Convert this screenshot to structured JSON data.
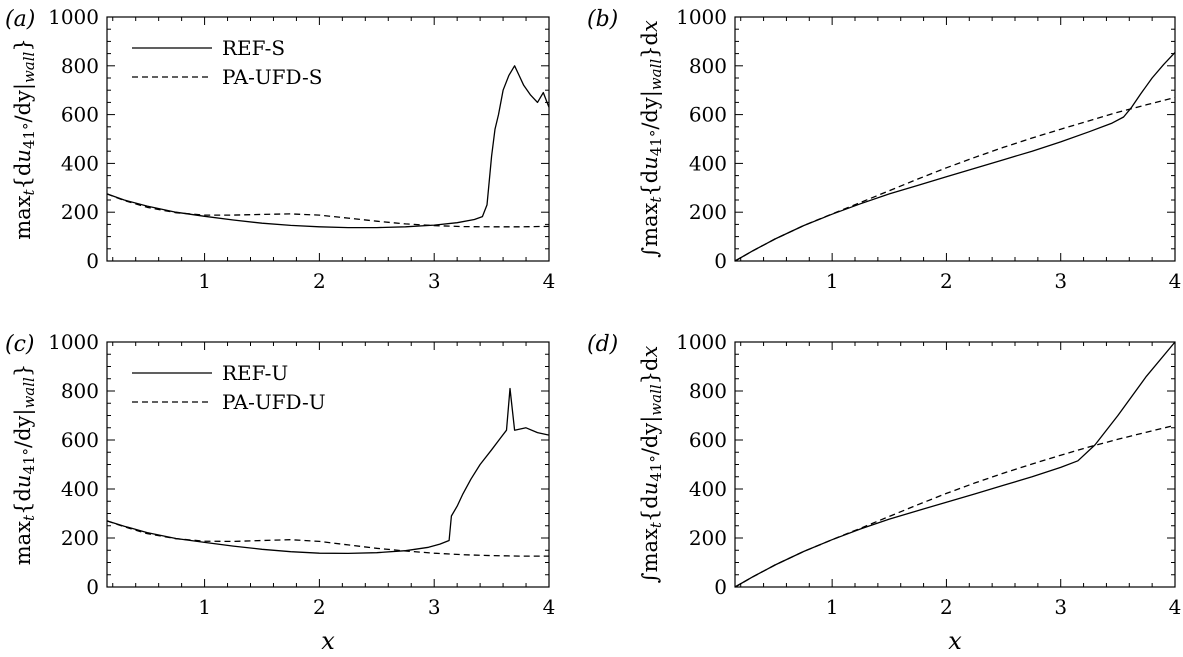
{
  "chart_data": [
    {
      "panel": "(a)",
      "type": "line",
      "ylabel": "max_t{du_41°/dy|_wall}",
      "xlabel": "",
      "xlim": [
        0.15,
        4.0
      ],
      "ylim": [
        0,
        1000
      ],
      "xticks": [
        "1",
        "2",
        "3",
        "4"
      ],
      "yticks": [
        "0",
        "200",
        "400",
        "600",
        "800",
        "1000"
      ],
      "legend": "top-left",
      "series": [
        {
          "name": "REF-S",
          "style": "solid",
          "x": [
            0.15,
            0.3,
            0.5,
            0.75,
            1.0,
            1.25,
            1.5,
            1.75,
            2.0,
            2.25,
            2.5,
            2.75,
            3.0,
            3.2,
            3.35,
            3.42,
            3.46,
            3.5,
            3.53,
            3.56,
            3.6,
            3.65,
            3.7,
            3.74,
            3.78,
            3.84,
            3.9,
            3.95,
            4.0
          ],
          "y": [
            275,
            250,
            225,
            200,
            183,
            168,
            155,
            146,
            140,
            137,
            137,
            140,
            147,
            157,
            170,
            182,
            230,
            430,
            540,
            600,
            700,
            760,
            800,
            760,
            720,
            680,
            650,
            690,
            630
          ]
        },
        {
          "name": "PA-UFD-S",
          "style": "dashed",
          "x": [
            0.15,
            0.3,
            0.5,
            0.75,
            1.0,
            1.25,
            1.5,
            1.75,
            2.0,
            2.25,
            2.5,
            2.75,
            3.0,
            3.25,
            3.5,
            3.75,
            4.0
          ],
          "y": [
            275,
            248,
            220,
            198,
            188,
            188,
            191,
            193,
            188,
            176,
            163,
            152,
            145,
            141,
            140,
            140,
            142
          ]
        }
      ]
    },
    {
      "panel": "(b)",
      "type": "line",
      "ylabel": "∫max_t{du_41°/dy|_wall}dx",
      "xlabel": "",
      "xlim": [
        0.15,
        4.0
      ],
      "ylim": [
        0,
        1000
      ],
      "xticks": [
        "1",
        "2",
        "3",
        "4"
      ],
      "yticks": [
        "0",
        "200",
        "400",
        "600",
        "800",
        "1000"
      ],
      "series": [
        {
          "name": "REF-S",
          "style": "solid",
          "x": [
            0.15,
            0.3,
            0.5,
            0.75,
            1.0,
            1.25,
            1.5,
            1.75,
            2.0,
            2.25,
            2.5,
            2.75,
            3.0,
            3.25,
            3.45,
            3.55,
            3.62,
            3.7,
            3.8,
            3.9,
            4.0
          ],
          "y": [
            0,
            40,
            90,
            145,
            192,
            235,
            275,
            310,
            345,
            380,
            415,
            450,
            488,
            530,
            565,
            590,
            630,
            685,
            750,
            805,
            855
          ]
        },
        {
          "name": "PA-UFD-S",
          "style": "dashed",
          "x": [
            0.15,
            0.3,
            0.5,
            0.75,
            1.0,
            1.25,
            1.5,
            1.75,
            2.0,
            2.25,
            2.5,
            2.75,
            3.0,
            3.25,
            3.5,
            3.75,
            4.0
          ],
          "y": [
            0,
            40,
            90,
            145,
            193,
            240,
            288,
            336,
            382,
            425,
            466,
            504,
            540,
            575,
            610,
            640,
            670
          ]
        }
      ]
    },
    {
      "panel": "(c)",
      "type": "line",
      "ylabel": "max_t{du_41°/dy|_wall}",
      "xlabel": "x",
      "xlim": [
        0.15,
        4.0
      ],
      "ylim": [
        0,
        1000
      ],
      "xticks": [
        "1",
        "2",
        "3",
        "4"
      ],
      "yticks": [
        "0",
        "200",
        "400",
        "600",
        "800",
        "1000"
      ],
      "legend": "top-left",
      "series": [
        {
          "name": "REF-U",
          "style": "solid",
          "x": [
            0.15,
            0.3,
            0.5,
            0.75,
            1.0,
            1.25,
            1.5,
            1.75,
            2.0,
            2.25,
            2.5,
            2.75,
            2.95,
            3.05,
            3.13,
            3.15,
            3.2,
            3.25,
            3.32,
            3.4,
            3.5,
            3.58,
            3.63,
            3.66,
            3.7,
            3.8,
            3.9,
            4.0
          ],
          "y": [
            270,
            248,
            222,
            198,
            182,
            167,
            154,
            144,
            138,
            137,
            140,
            148,
            162,
            175,
            190,
            290,
            330,
            380,
            440,
            500,
            560,
            610,
            640,
            810,
            640,
            650,
            630,
            620
          ]
        },
        {
          "name": "PA-UFD-U",
          "style": "dashed",
          "x": [
            0.15,
            0.3,
            0.5,
            0.75,
            1.0,
            1.25,
            1.5,
            1.75,
            2.0,
            2.25,
            2.5,
            2.75,
            3.0,
            3.25,
            3.5,
            3.75,
            4.0
          ],
          "y": [
            270,
            246,
            218,
            197,
            187,
            186,
            190,
            193,
            186,
            172,
            158,
            147,
            138,
            132,
            128,
            126,
            126
          ]
        }
      ]
    },
    {
      "panel": "(d)",
      "type": "line",
      "ylabel": "∫max_t{du_41°/dy|_wall}dx",
      "xlabel": "x",
      "xlim": [
        0.15,
        4.0
      ],
      "ylim": [
        0,
        1000
      ],
      "xticks": [
        "1",
        "2",
        "3",
        "4"
      ],
      "yticks": [
        "0",
        "200",
        "400",
        "600",
        "800",
        "1000"
      ],
      "series": [
        {
          "name": "REF-U",
          "style": "solid",
          "x": [
            0.15,
            0.3,
            0.5,
            0.75,
            1.0,
            1.25,
            1.5,
            1.75,
            2.0,
            2.25,
            2.5,
            2.75,
            3.0,
            3.15,
            3.3,
            3.5,
            3.75,
            4.0
          ],
          "y": [
            0,
            40,
            90,
            145,
            193,
            237,
            277,
            312,
            346,
            380,
            415,
            450,
            488,
            515,
            580,
            700,
            860,
            1000
          ]
        },
        {
          "name": "PA-UFD-U",
          "style": "dashed",
          "x": [
            0.15,
            0.3,
            0.5,
            0.75,
            1.0,
            1.25,
            1.5,
            1.75,
            2.0,
            2.25,
            2.5,
            2.75,
            3.0,
            3.25,
            3.5,
            3.75,
            4.0
          ],
          "y": [
            0,
            40,
            90,
            145,
            193,
            240,
            288,
            336,
            382,
            425,
            465,
            502,
            538,
            572,
            603,
            632,
            660
          ]
        }
      ]
    }
  ]
}
